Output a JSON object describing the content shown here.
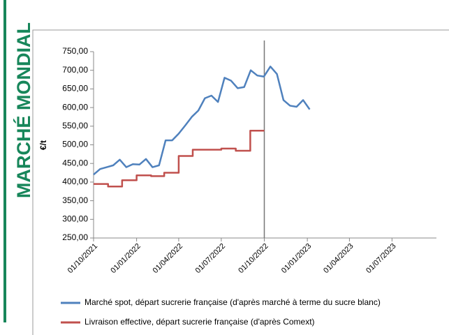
{
  "side_title": "MARCHÉ MONDIAL",
  "chart_data": {
    "type": "line",
    "ylabel": "€/t",
    "xlim": [
      "2021-10-01",
      "2023-10-01"
    ],
    "xticks": [
      {
        "value": "2021-10-01",
        "label": "01/10/2021"
      },
      {
        "value": "2022-01-01",
        "label": "01/01/2022"
      },
      {
        "value": "2022-04-01",
        "label": "01/04/2022"
      },
      {
        "value": "2022-07-01",
        "label": "01/07/2022"
      },
      {
        "value": "2022-10-01",
        "label": "01/10/2022"
      },
      {
        "value": "2023-01-01",
        "label": "01/01/2023"
      },
      {
        "value": "2023-04-01",
        "label": "01/04/2023"
      },
      {
        "value": "2023-07-01",
        "label": "01/07/2023"
      }
    ],
    "ylim": [
      250,
      750
    ],
    "yticks": [
      {
        "value": 250,
        "label": "250,00"
      },
      {
        "value": 300,
        "label": "300,00"
      },
      {
        "value": 350,
        "label": "350,00"
      },
      {
        "value": 400,
        "label": "400,00"
      },
      {
        "value": 450,
        "label": "450,00"
      },
      {
        "value": 500,
        "label": "500,00"
      },
      {
        "value": 550,
        "label": "550,00"
      },
      {
        "value": 600,
        "label": "600,00"
      },
      {
        "value": 650,
        "label": "650,00"
      },
      {
        "value": 700,
        "label": "700,00"
      },
      {
        "value": 750,
        "label": "750,00"
      }
    ],
    "vline": "2022-10-01",
    "series": [
      {
        "name": "Marché spot, départ sucrerie française (d'après marché à terme du sucre blanc)",
        "color": "#4f81bd",
        "step": false,
        "x": [
          "2021-10-01",
          "2021-10-15",
          "2021-10-29",
          "2021-11-12",
          "2021-11-26",
          "2021-12-10",
          "2021-12-24",
          "2022-01-07",
          "2022-01-21",
          "2022-02-04",
          "2022-02-18",
          "2022-03-04",
          "2022-03-18",
          "2022-04-01",
          "2022-04-15",
          "2022-04-29",
          "2022-05-13",
          "2022-05-27",
          "2022-06-10",
          "2022-06-24",
          "2022-07-08",
          "2022-07-22",
          "2022-08-05",
          "2022-08-19",
          "2022-09-02",
          "2022-09-16",
          "2022-09-30",
          "2022-10-14",
          "2022-10-28",
          "2022-11-11",
          "2022-11-25",
          "2022-12-09",
          "2022-12-23",
          "2023-01-06"
        ],
        "values": [
          420,
          435,
          440,
          445,
          460,
          440,
          448,
          447,
          462,
          440,
          445,
          512,
          512,
          530,
          552,
          575,
          592,
          625,
          632,
          615,
          680,
          672,
          652,
          655,
          700,
          686,
          683,
          710,
          690,
          620,
          605,
          602,
          620,
          595
        ]
      },
      {
        "name": "Livraison effective, départ sucrerie française (d'après Comext)",
        "color": "#c0504d",
        "step": true,
        "x": [
          "2021-10-01",
          "2021-11-01",
          "2021-12-01",
          "2022-01-01",
          "2022-02-01",
          "2022-03-01",
          "2022-04-01",
          "2022-05-01",
          "2022-06-01",
          "2022-07-01",
          "2022-08-01",
          "2022-09-01",
          "2022-10-01"
        ],
        "values": [
          395,
          388,
          405,
          418,
          416,
          425,
          470,
          487,
          487,
          490,
          484,
          538,
          538
        ]
      }
    ]
  }
}
